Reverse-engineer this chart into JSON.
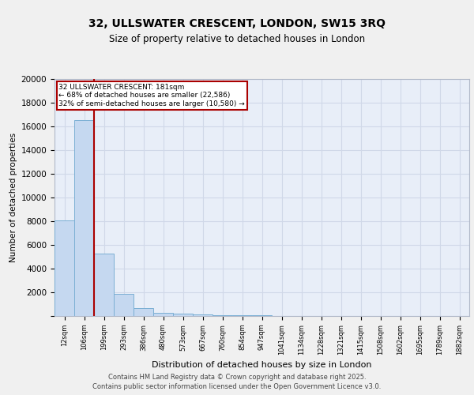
{
  "title": "32, ULLSWATER CRESCENT, LONDON, SW15 3RQ",
  "subtitle": "Size of property relative to detached houses in London",
  "xlabel": "Distribution of detached houses by size in London",
  "ylabel": "Number of detached properties",
  "bar_color": "#c5d8f0",
  "bar_edge_color": "#7bafd4",
  "background_color": "#e8eef8",
  "grid_color": "#d0d8e8",
  "bin_labels": [
    "12sqm",
    "106sqm",
    "199sqm",
    "293sqm",
    "386sqm",
    "480sqm",
    "573sqm",
    "667sqm",
    "760sqm",
    "854sqm",
    "947sqm",
    "1041sqm",
    "1134sqm",
    "1228sqm",
    "1321sqm",
    "1415sqm",
    "1508sqm",
    "1602sqm",
    "1695sqm",
    "1789sqm",
    "1882sqm"
  ],
  "bar_values": [
    8100,
    16500,
    5300,
    1900,
    650,
    300,
    200,
    130,
    80,
    55,
    40,
    30,
    22,
    16,
    12,
    8,
    6,
    4,
    3,
    2,
    1
  ],
  "property_line_x": 2.0,
  "property_line_color": "#aa0000",
  "annotation_text": "32 ULLSWATER CRESCENT: 181sqm\n← 68% of detached houses are smaller (22,586)\n32% of semi-detached houses are larger (10,580) →",
  "annotation_box_facecolor": "#ffffff",
  "annotation_box_edgecolor": "#aa0000",
  "ylim": [
    0,
    20000
  ],
  "yticks": [
    0,
    2000,
    4000,
    6000,
    8000,
    10000,
    12000,
    14000,
    16000,
    18000,
    20000
  ],
  "fig_facecolor": "#f0f0f0",
  "footer_line1": "Contains HM Land Registry data © Crown copyright and database right 2025.",
  "footer_line2": "Contains public sector information licensed under the Open Government Licence v3.0."
}
